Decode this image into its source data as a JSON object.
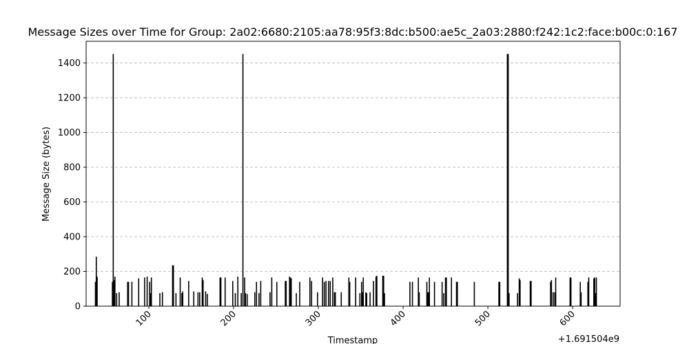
{
  "chart_data": {
    "type": "bar",
    "title": "Message Sizes over Time for Group: 2a02:6680:2105:aa78:95f3:8dc:b500:ae5c_2a03:2880:f242:1c2:face:b00c:0:167",
    "xlabel": "Timestamp",
    "ylabel": "Message Size (bytes)",
    "x_offset_label": "+1.691504e9",
    "xlim": [
      26,
      656
    ],
    "ylim": [
      0,
      1525
    ],
    "xticks": [
      100,
      200,
      300,
      400,
      500,
      600
    ],
    "yticks": [
      0,
      200,
      400,
      600,
      800,
      1000,
      1200,
      1400
    ],
    "grid": "y-dashed",
    "bar_color": "#000000",
    "points": [
      [
        37,
        140
      ],
      [
        38,
        285
      ],
      [
        39,
        170
      ],
      [
        57,
        140
      ],
      [
        58,
        1452
      ],
      [
        59,
        150
      ],
      [
        60,
        170
      ],
      [
        62,
        75
      ],
      [
        65,
        80
      ],
      [
        75,
        140
      ],
      [
        76,
        140
      ],
      [
        80,
        140
      ],
      [
        88,
        160
      ],
      [
        95,
        165
      ],
      [
        98,
        170
      ],
      [
        101,
        140
      ],
      [
        102,
        75
      ],
      [
        103,
        165
      ],
      [
        113,
        75
      ],
      [
        116,
        80
      ],
      [
        128,
        235
      ],
      [
        129,
        235
      ],
      [
        132,
        75
      ],
      [
        137,
        165
      ],
      [
        139,
        75
      ],
      [
        140,
        85
      ],
      [
        147,
        145
      ],
      [
        153,
        85
      ],
      [
        158,
        80
      ],
      [
        160,
        80
      ],
      [
        163,
        165
      ],
      [
        164,
        150
      ],
      [
        167,
        85
      ],
      [
        169,
        70
      ],
      [
        184,
        165
      ],
      [
        185,
        165
      ],
      [
        190,
        165
      ],
      [
        199,
        145
      ],
      [
        202,
        75
      ],
      [
        205,
        170
      ],
      [
        209,
        75
      ],
      [
        211,
        1452
      ],
      [
        213,
        165
      ],
      [
        214,
        75
      ],
      [
        216,
        70
      ],
      [
        225,
        80
      ],
      [
        227,
        140
      ],
      [
        230,
        75
      ],
      [
        232,
        145
      ],
      [
        243,
        80
      ],
      [
        245,
        165
      ],
      [
        251,
        140
      ],
      [
        261,
        145
      ],
      [
        262,
        145
      ],
      [
        266,
        170
      ],
      [
        267,
        165
      ],
      [
        268,
        160
      ],
      [
        274,
        75
      ],
      [
        278,
        140
      ],
      [
        290,
        165
      ],
      [
        292,
        145
      ],
      [
        299,
        80
      ],
      [
        305,
        165
      ],
      [
        307,
        140
      ],
      [
        309,
        145
      ],
      [
        312,
        145
      ],
      [
        314,
        145
      ],
      [
        317,
        165
      ],
      [
        319,
        80
      ],
      [
        320,
        80
      ],
      [
        327,
        80
      ],
      [
        336,
        165
      ],
      [
        337,
        140
      ],
      [
        344,
        165
      ],
      [
        349,
        75
      ],
      [
        351,
        140
      ],
      [
        352,
        80
      ],
      [
        353,
        165
      ],
      [
        356,
        80
      ],
      [
        357,
        75
      ],
      [
        361,
        80
      ],
      [
        365,
        145
      ],
      [
        368,
        170
      ],
      [
        369,
        175
      ],
      [
        376,
        175
      ],
      [
        377,
        175
      ],
      [
        378,
        75
      ],
      [
        408,
        140
      ],
      [
        411,
        140
      ],
      [
        418,
        165
      ],
      [
        419,
        80
      ],
      [
        428,
        140
      ],
      [
        429,
        80
      ],
      [
        430,
        80
      ],
      [
        431,
        165
      ],
      [
        437,
        140
      ],
      [
        446,
        140
      ],
      [
        448,
        75
      ],
      [
        450,
        165
      ],
      [
        451,
        165
      ],
      [
        457,
        165
      ],
      [
        463,
        140
      ],
      [
        464,
        140
      ],
      [
        484,
        140
      ],
      [
        513,
        140
      ],
      [
        514,
        140
      ],
      [
        523,
        1452
      ],
      [
        524,
        1452
      ],
      [
        525,
        75
      ],
      [
        535,
        75
      ],
      [
        537,
        160
      ],
      [
        538,
        150
      ],
      [
        550,
        145
      ],
      [
        551,
        145
      ],
      [
        574,
        140
      ],
      [
        575,
        150
      ],
      [
        577,
        80
      ],
      [
        579,
        80
      ],
      [
        580,
        165
      ],
      [
        597,
        165
      ],
      [
        598,
        165
      ],
      [
        609,
        140
      ],
      [
        610,
        80
      ],
      [
        618,
        140
      ],
      [
        619,
        165
      ],
      [
        625,
        160
      ],
      [
        626,
        165
      ],
      [
        627,
        75
      ],
      [
        628,
        165
      ]
    ]
  }
}
